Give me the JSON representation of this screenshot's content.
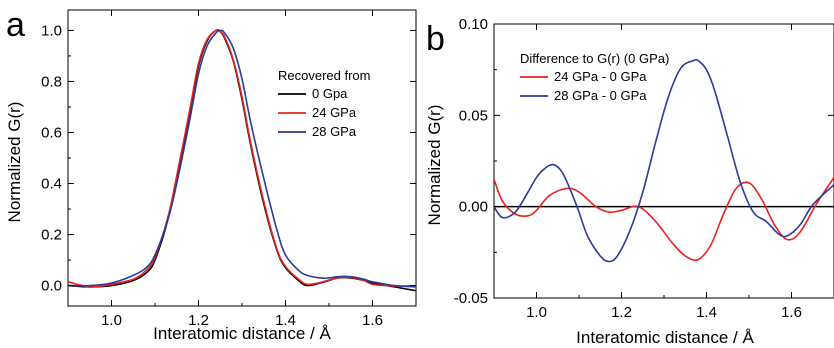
{
  "chart_data": [
    {
      "panel_label": "a",
      "type": "line",
      "xlabel": "Interatomic distance / Å",
      "ylabel": "Normalized G(r)",
      "xlim": [
        0.9,
        1.7
      ],
      "ylim": [
        -0.08,
        1.08
      ],
      "xticks": [
        "1.0",
        "1.2",
        "1.4",
        "1.6"
      ],
      "yticks": [
        "0.0",
        "0.2",
        "0.4",
        "0.6",
        "0.8",
        "1.0"
      ],
      "legend_title": "Recovered from",
      "legend_position": "top-right",
      "series": [
        {
          "name": "0 Gpa",
          "color": "#000000",
          "x": [
            0.9,
            0.95,
            1.0,
            1.05,
            1.08,
            1.1,
            1.13,
            1.15,
            1.18,
            1.2,
            1.22,
            1.24,
            1.25,
            1.26,
            1.28,
            1.3,
            1.32,
            1.35,
            1.38,
            1.4,
            1.43,
            1.45,
            1.48,
            1.5,
            1.52,
            1.55,
            1.58,
            1.6,
            1.65,
            1.7
          ],
          "y": [
            0.0,
            -0.005,
            0.0,
            0.02,
            0.05,
            0.1,
            0.26,
            0.42,
            0.68,
            0.86,
            0.96,
            1.0,
            0.995,
            0.97,
            0.88,
            0.73,
            0.55,
            0.32,
            0.14,
            0.07,
            0.02,
            0.0,
            0.01,
            0.02,
            0.03,
            0.03,
            0.02,
            0.01,
            -0.005,
            -0.02
          ]
        },
        {
          "name": "24 GPa",
          "color": "#e8231e",
          "x": [
            0.9,
            0.95,
            1.0,
            1.05,
            1.08,
            1.1,
            1.13,
            1.15,
            1.18,
            1.2,
            1.22,
            1.24,
            1.25,
            1.26,
            1.28,
            1.3,
            1.32,
            1.35,
            1.38,
            1.4,
            1.43,
            1.45,
            1.48,
            1.5,
            1.52,
            1.55,
            1.58,
            1.6,
            1.65,
            1.7
          ],
          "y": [
            0.015,
            -0.005,
            0.005,
            0.025,
            0.06,
            0.11,
            0.27,
            0.43,
            0.69,
            0.87,
            0.965,
            1.0,
            0.995,
            0.975,
            0.885,
            0.74,
            0.56,
            0.33,
            0.145,
            0.075,
            0.025,
            0.005,
            0.012,
            0.022,
            0.03,
            0.032,
            0.02,
            0.005,
            -0.002,
            0.0
          ]
        },
        {
          "name": "28 GPa",
          "color": "#2b3a9c",
          "x": [
            0.9,
            0.95,
            1.0,
            1.05,
            1.08,
            1.1,
            1.13,
            1.15,
            1.18,
            1.2,
            1.22,
            1.24,
            1.25,
            1.26,
            1.28,
            1.3,
            1.32,
            1.35,
            1.38,
            1.4,
            1.43,
            1.45,
            1.48,
            1.5,
            1.52,
            1.55,
            1.58,
            1.6,
            1.65,
            1.7
          ],
          "y": [
            0.0,
            0.0,
            0.01,
            0.04,
            0.07,
            0.12,
            0.26,
            0.4,
            0.65,
            0.83,
            0.94,
            0.99,
            1.0,
            0.99,
            0.93,
            0.81,
            0.64,
            0.42,
            0.22,
            0.12,
            0.06,
            0.04,
            0.03,
            0.03,
            0.035,
            0.035,
            0.025,
            0.015,
            0.0,
            -0.005
          ]
        }
      ]
    },
    {
      "panel_label": "b",
      "type": "line",
      "xlabel": "Interatomic distance / Å",
      "ylabel": "Normalized G(r)",
      "xlim": [
        0.9,
        1.7
      ],
      "ylim": [
        -0.05,
        0.1
      ],
      "xticks": [
        "1.0",
        "1.2",
        "1.4",
        "1.6"
      ],
      "yticks": [
        "-0.05",
        "0.00",
        "0.05",
        "0.10"
      ],
      "zero_line": true,
      "legend_title": "Difference to G(r) (0 GPa)",
      "legend_position": "top-left",
      "series": [
        {
          "name": "24 GPa - 0 GPa",
          "color": "#e8231e",
          "x": [
            0.9,
            0.92,
            0.95,
            0.98,
            1.0,
            1.03,
            1.07,
            1.1,
            1.14,
            1.17,
            1.2,
            1.24,
            1.28,
            1.32,
            1.35,
            1.38,
            1.41,
            1.44,
            1.47,
            1.5,
            1.53,
            1.56,
            1.59,
            1.62,
            1.66,
            1.7
          ],
          "y": [
            0.015,
            0.003,
            -0.004,
            -0.005,
            -0.002,
            0.006,
            0.01,
            0.008,
            0.0,
            -0.003,
            -0.002,
            0.0,
            -0.008,
            -0.02,
            -0.027,
            -0.029,
            -0.021,
            -0.004,
            0.01,
            0.013,
            0.004,
            -0.01,
            -0.018,
            -0.014,
            0.002,
            0.016
          ]
        },
        {
          "name": "28 GPa - 0 GPa",
          "color": "#2b3a9c",
          "x": [
            0.9,
            0.92,
            0.95,
            0.98,
            1.0,
            1.02,
            1.04,
            1.06,
            1.08,
            1.1,
            1.12,
            1.15,
            1.17,
            1.19,
            1.22,
            1.25,
            1.28,
            1.31,
            1.34,
            1.37,
            1.38,
            1.4,
            1.42,
            1.45,
            1.48,
            1.51,
            1.54,
            1.57,
            1.59,
            1.62,
            1.65,
            1.7
          ],
          "y": [
            0.0,
            -0.006,
            -0.003,
            0.008,
            0.016,
            0.021,
            0.023,
            0.019,
            0.009,
            -0.003,
            -0.016,
            -0.027,
            -0.03,
            -0.027,
            -0.013,
            0.008,
            0.035,
            0.06,
            0.076,
            0.08,
            0.08,
            0.075,
            0.063,
            0.038,
            0.013,
            -0.003,
            -0.008,
            -0.015,
            -0.016,
            -0.01,
            0.001,
            0.012
          ]
        }
      ]
    }
  ]
}
